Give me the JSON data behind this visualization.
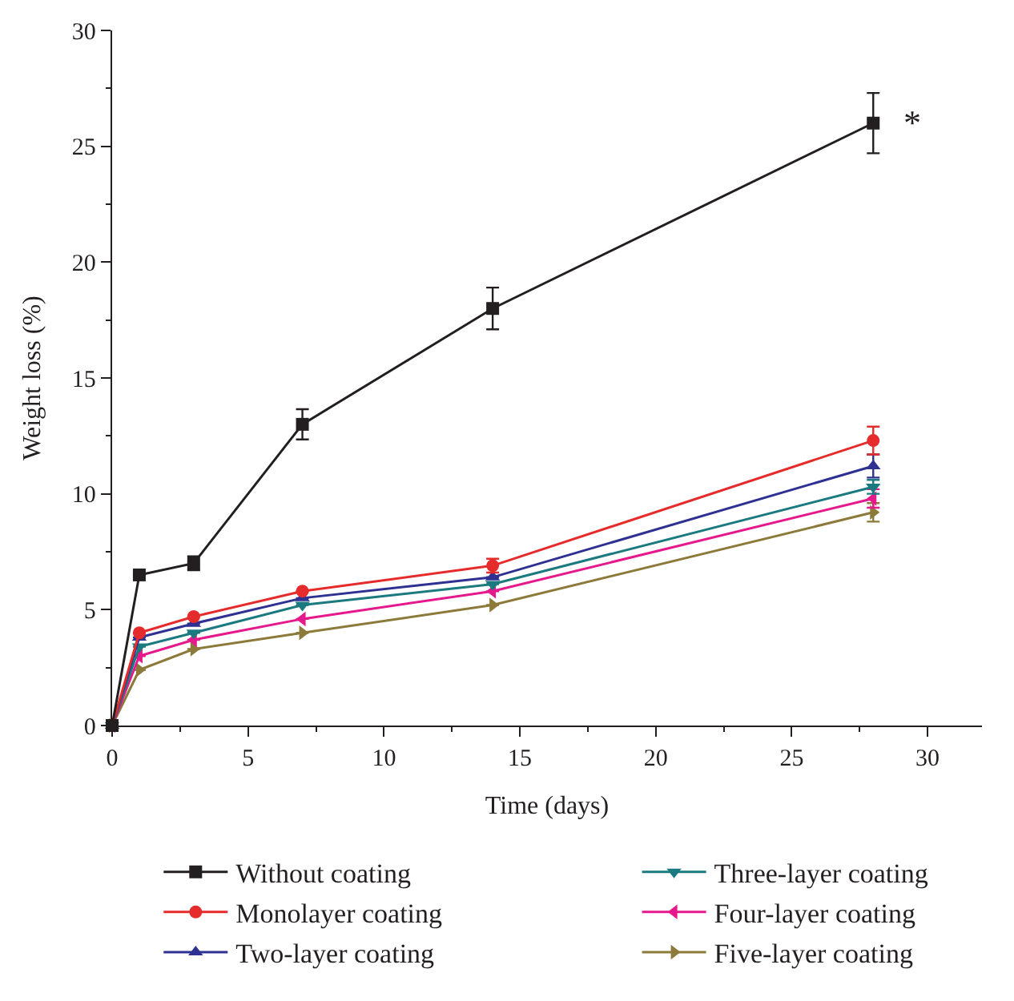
{
  "chart_data": {
    "type": "line",
    "xlabel": "Time (days)",
    "ylabel": "Weight loss (%)",
    "x": [
      0,
      1,
      3,
      7,
      14,
      28
    ],
    "series": [
      {
        "name": "Without coating",
        "color": "#231f20",
        "marker": "square",
        "values": [
          0,
          6.5,
          7.0,
          13.0,
          18.0,
          26.0
        ],
        "errors": [
          null,
          null,
          0.3,
          0.65,
          0.9,
          1.3
        ]
      },
      {
        "name": "Monolayer coating",
        "color": "#e52b2b",
        "marker": "circle",
        "values": [
          0,
          4.0,
          4.7,
          5.8,
          6.9,
          12.3
        ],
        "errors": [
          null,
          null,
          null,
          null,
          0.3,
          0.6
        ]
      },
      {
        "name": "Two-layer coating",
        "color": "#2e3192",
        "marker": "triangle",
        "values": [
          0,
          3.8,
          4.4,
          5.5,
          6.4,
          11.2
        ],
        "errors": [
          null,
          null,
          null,
          null,
          null,
          0.5
        ]
      },
      {
        "name": "Three-layer coating",
        "color": "#1a7a7f",
        "marker": "triangle-down",
        "values": [
          0,
          3.4,
          4.0,
          5.2,
          6.1,
          10.3
        ],
        "errors": [
          null,
          null,
          null,
          null,
          null,
          0.3
        ]
      },
      {
        "name": "Four-layer coating",
        "color": "#e5198c",
        "marker": "triangle-left",
        "values": [
          0,
          3.0,
          3.7,
          4.6,
          5.8,
          9.8
        ],
        "errors": [
          null,
          null,
          null,
          null,
          null,
          0.4
        ]
      },
      {
        "name": "Five-layer coating",
        "color": "#8c7a3a",
        "marker": "triangle-right",
        "values": [
          0,
          2.4,
          3.3,
          4.0,
          5.2,
          9.2
        ],
        "errors": [
          null,
          null,
          null,
          null,
          null,
          0.4
        ]
      }
    ],
    "annotations": [
      {
        "text": "*",
        "x": 28,
        "y": 26.0
      }
    ],
    "xlim": [
      0,
      32
    ],
    "xticks": [
      0,
      5,
      10,
      15,
      20,
      25,
      30
    ],
    "ylim": [
      0,
      30
    ],
    "yticks": [
      0,
      5,
      10,
      15,
      20,
      25,
      30
    ],
    "legend": "bottom",
    "line_style": "solid"
  }
}
